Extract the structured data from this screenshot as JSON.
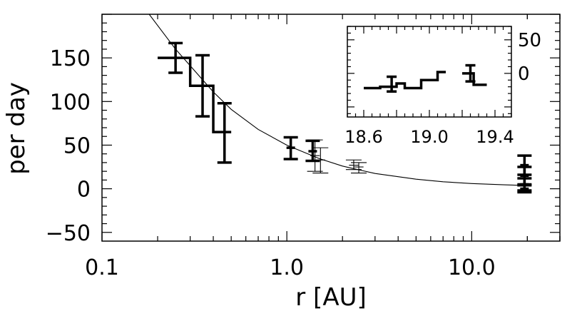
{
  "chart_data": [
    {
      "type": "line",
      "title": "",
      "xlabel": "r [AU]",
      "ylabel": "per day",
      "xscale": "log",
      "xlim": [
        0.1,
        30
      ],
      "ylim": [
        -60,
        200
      ],
      "x_tick_labels": [
        {
          "value": 0.1,
          "label": "0.1"
        },
        {
          "value": 1.0,
          "label": "1.0"
        },
        {
          "value": 10.0,
          "label": "10.0"
        }
      ],
      "y_tick_labels": [
        {
          "value": -50,
          "label": "−50"
        },
        {
          "value": 0,
          "label": "0"
        },
        {
          "value": 50,
          "label": "50"
        },
        {
          "value": 100,
          "label": "100"
        },
        {
          "value": 150,
          "label": "150"
        }
      ],
      "grid": false,
      "series": [
        {
          "style": "thick-step-histogram",
          "steps": [
            {
              "x0": 0.2,
              "x1": 0.3,
              "y": 150
            },
            {
              "x0": 0.3,
              "x1": 0.4,
              "y": 118
            },
            {
              "x0": 0.4,
              "x1": 0.5,
              "y": 65
            }
          ],
          "error_bars": [
            {
              "x": 0.25,
              "y": 150,
              "lo": 133,
              "hi": 167
            },
            {
              "x": 0.35,
              "y": 118,
              "lo": 83,
              "hi": 153
            },
            {
              "x": 0.46,
              "y": 65,
              "lo": 30,
              "hi": 98
            }
          ]
        },
        {
          "style": "thick-error-bars",
          "error_bars": [
            {
              "x": 1.05,
              "y": 47,
              "lo": 34,
              "hi": 59
            },
            {
              "x": 1.38,
              "y": 43,
              "lo": 32,
              "hi": 55
            },
            {
              "x": 19.3,
              "y": 27,
              "lo": 16,
              "hi": 38
            },
            {
              "x": 19.3,
              "y": 15,
              "lo": 5,
              "hi": 25
            },
            {
              "x": 19.3,
              "y": 5,
              "lo": -2,
              "hi": 12
            },
            {
              "x": 19.3,
              "y": 0,
              "lo": -4,
              "hi": 4
            }
          ]
        },
        {
          "style": "thin-error-bars",
          "error_bars": [
            {
              "x": 1.42,
              "y": 38,
              "lo": 20,
              "hi": 56
            },
            {
              "x": 1.52,
              "y": 33,
              "lo": 18,
              "hi": 47
            },
            {
              "x": 2.3,
              "y": 27,
              "lo": 22,
              "hi": 33
            },
            {
              "x": 2.45,
              "y": 25,
              "lo": 18,
              "hi": 30
            }
          ]
        },
        {
          "style": "thin-model-curve",
          "points": [
            [
              0.18,
              200
            ],
            [
              0.25,
              160
            ],
            [
              0.3,
              141
            ],
            [
              0.4,
              111
            ],
            [
              0.5,
              91
            ],
            [
              0.7,
              68
            ],
            [
              1.0,
              50
            ],
            [
              1.5,
              34.5
            ],
            [
              2.0,
              26
            ],
            [
              3.0,
              17.5
            ],
            [
              5.0,
              11
            ],
            [
              7.0,
              8
            ],
            [
              10.0,
              6
            ],
            [
              15.0,
              4.5
            ],
            [
              19.0,
              3.8
            ]
          ]
        }
      ]
    },
    {
      "type": "line",
      "role": "inset",
      "title": "",
      "xlabel": "",
      "ylabel": "",
      "xlim": [
        18.5,
        19.5
      ],
      "ylim": [
        -65,
        70
      ],
      "x_tick_labels": [
        {
          "value": 18.6,
          "label": "18.6"
        },
        {
          "value": 19.0,
          "label": "19.0"
        },
        {
          "value": 19.4,
          "label": "19.4"
        }
      ],
      "y_tick_labels": [
        {
          "value": 0,
          "label": "0"
        },
        {
          "value": 50,
          "label": "50"
        }
      ],
      "y_axis_side": "right",
      "series": [
        {
          "style": "thick-step-histogram",
          "steps": [
            {
              "x0": 18.6,
              "x1": 18.7,
              "y": -22
            },
            {
              "x0": 18.7,
              "x1": 18.8,
              "y": -20
            },
            {
              "x0": 18.8,
              "x1": 18.85,
              "y": -15
            },
            {
              "x0": 18.85,
              "x1": 18.95,
              "y": -22
            },
            {
              "x0": 18.95,
              "x1": 19.05,
              "y": -10
            },
            {
              "x0": 19.05,
              "x1": 19.1,
              "y": 2
            },
            {
              "x0": 19.2,
              "x1": 19.27,
              "y": 0
            },
            {
              "x0": 19.27,
              "x1": 19.35,
              "y": -17
            }
          ],
          "error_bars": [
            {
              "x": 18.77,
              "y": -18,
              "lo": -27,
              "hi": -5
            },
            {
              "x": 19.25,
              "y": 0,
              "lo": -12,
              "hi": 12
            }
          ]
        }
      ]
    }
  ]
}
